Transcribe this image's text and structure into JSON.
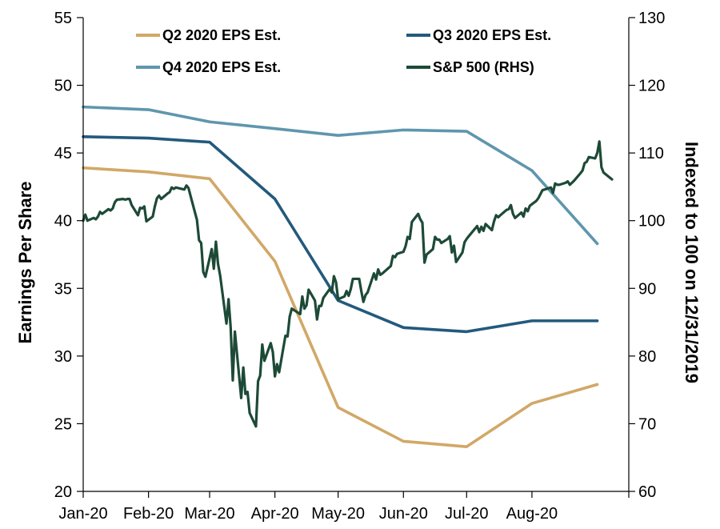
{
  "chart_data": {
    "type": "line",
    "title": "",
    "xlabel": "",
    "ylabel": "Earnings Per Share",
    "y2label": "Indexed to 100 on 12/31/2019",
    "x_ticks": [
      "Jan-20",
      "Feb-20",
      "Mar-20",
      "Apr-20",
      "May-20",
      "Jun-20",
      "Jul-20",
      "Aug-20"
    ],
    "x_range": [
      "2020-01-01",
      "2020-09-08"
    ],
    "ylim": [
      20,
      55
    ],
    "yticks": [
      "20",
      "25",
      "30",
      "35",
      "40",
      "45",
      "50",
      "55"
    ],
    "y2lim": [
      60,
      130
    ],
    "y2ticks": [
      "60",
      "70",
      "80",
      "90",
      "100",
      "110",
      "120",
      "130"
    ],
    "grid": false,
    "legend_position": "top",
    "series": [
      {
        "name": "Q2 2020 EPS Est.",
        "axis": "left",
        "color": "#d1a867",
        "points": [
          [
            "2020-01-01",
            43.9
          ],
          [
            "2020-02-01",
            43.6
          ],
          [
            "2020-03-01",
            43.1
          ],
          [
            "2020-04-01",
            37.0
          ],
          [
            "2020-05-01",
            26.2
          ],
          [
            "2020-06-01",
            23.7
          ],
          [
            "2020-07-01",
            23.3
          ],
          [
            "2020-08-01",
            26.5
          ],
          [
            "2020-09-01",
            27.9
          ]
        ]
      },
      {
        "name": "Q3 2020 EPS Est.",
        "axis": "left",
        "color": "#235a7d",
        "points": [
          [
            "2020-01-01",
            46.2
          ],
          [
            "2020-02-01",
            46.1
          ],
          [
            "2020-03-01",
            45.8
          ],
          [
            "2020-04-01",
            41.6
          ],
          [
            "2020-05-01",
            34.1
          ],
          [
            "2020-06-01",
            32.1
          ],
          [
            "2020-07-01",
            31.8
          ],
          [
            "2020-08-01",
            32.6
          ],
          [
            "2020-09-01",
            32.6
          ]
        ]
      },
      {
        "name": "Q4 2020 EPS Est.",
        "axis": "left",
        "color": "#5f96ae",
        "points": [
          [
            "2020-01-01",
            48.4
          ],
          [
            "2020-02-01",
            48.2
          ],
          [
            "2020-03-01",
            47.3
          ],
          [
            "2020-04-01",
            46.8
          ],
          [
            "2020-05-01",
            46.3
          ],
          [
            "2020-06-01",
            46.7
          ],
          [
            "2020-07-01",
            46.6
          ],
          [
            "2020-08-01",
            43.7
          ],
          [
            "2020-09-01",
            38.3
          ]
        ]
      },
      {
        "name": "S&P 500 (RHS)",
        "axis": "right",
        "color": "#1d4a37",
        "points": [
          [
            "2020-01-01",
            100.0
          ],
          [
            "2020-01-02",
            100.9
          ],
          [
            "2020-01-03",
            100.0
          ],
          [
            "2020-01-06",
            100.4
          ],
          [
            "2020-01-07",
            100.2
          ],
          [
            "2020-01-08",
            100.6
          ],
          [
            "2020-01-09",
            101.3
          ],
          [
            "2020-01-10",
            101.0
          ],
          [
            "2020-01-13",
            101.7
          ],
          [
            "2020-01-14",
            101.5
          ],
          [
            "2020-01-15",
            101.8
          ],
          [
            "2020-01-16",
            102.7
          ],
          [
            "2020-01-17",
            103.1
          ],
          [
            "2020-01-20",
            103.2
          ],
          [
            "2020-01-21",
            103.1
          ],
          [
            "2020-01-22",
            103.2
          ],
          [
            "2020-01-23",
            103.2
          ],
          [
            "2020-01-24",
            102.3
          ],
          [
            "2020-01-27",
            100.8
          ],
          [
            "2020-01-28",
            101.9
          ],
          [
            "2020-01-29",
            101.8
          ],
          [
            "2020-01-30",
            102.1
          ],
          [
            "2020-01-31",
            99.9
          ],
          [
            "2020-02-03",
            100.6
          ],
          [
            "2020-02-04",
            102.1
          ],
          [
            "2020-02-05",
            103.3
          ],
          [
            "2020-02-06",
            103.7
          ],
          [
            "2020-02-07",
            103.2
          ],
          [
            "2020-02-10",
            104.0
          ],
          [
            "2020-02-11",
            104.2
          ],
          [
            "2020-02-12",
            104.9
          ],
          [
            "2020-02-13",
            104.7
          ],
          [
            "2020-02-14",
            104.9
          ],
          [
            "2020-02-18",
            104.6
          ],
          [
            "2020-02-19",
            105.2
          ],
          [
            "2020-02-20",
            104.8
          ],
          [
            "2020-02-21",
            103.6
          ],
          [
            "2020-02-24",
            100.1
          ],
          [
            "2020-02-25",
            97.1
          ],
          [
            "2020-02-26",
            96.7
          ],
          [
            "2020-02-27",
            92.4
          ],
          [
            "2020-02-28",
            91.7
          ],
          [
            "2020-03-02",
            95.8
          ],
          [
            "2020-03-03",
            92.9
          ],
          [
            "2020-03-04",
            96.9
          ],
          [
            "2020-03-05",
            93.6
          ],
          [
            "2020-03-06",
            91.9
          ],
          [
            "2020-03-09",
            84.8
          ],
          [
            "2020-03-10",
            88.4
          ],
          [
            "2020-03-11",
            84.2
          ],
          [
            "2020-03-12",
            76.4
          ],
          [
            "2020-03-13",
            83.6
          ],
          [
            "2020-03-16",
            73.8
          ],
          [
            "2020-03-17",
            78.3
          ],
          [
            "2020-03-18",
            74.4
          ],
          [
            "2020-03-19",
            74.7
          ],
          [
            "2020-03-20",
            71.6
          ],
          [
            "2020-03-23",
            69.6
          ],
          [
            "2020-03-24",
            76.3
          ],
          [
            "2020-03-25",
            77.1
          ],
          [
            "2020-03-26",
            81.7
          ],
          [
            "2020-03-27",
            79.3
          ],
          [
            "2020-03-30",
            81.9
          ],
          [
            "2020-03-31",
            80.6
          ],
          [
            "2020-04-01",
            77.0
          ],
          [
            "2020-04-02",
            78.8
          ],
          [
            "2020-04-03",
            77.6
          ],
          [
            "2020-04-06",
            83.0
          ],
          [
            "2020-04-07",
            82.9
          ],
          [
            "2020-04-08",
            85.8
          ],
          [
            "2020-04-09",
            87.0
          ],
          [
            "2020-04-13",
            86.2
          ],
          [
            "2020-04-14",
            88.8
          ],
          [
            "2020-04-15",
            87.0
          ],
          [
            "2020-04-16",
            87.5
          ],
          [
            "2020-04-17",
            89.8
          ],
          [
            "2020-04-20",
            88.2
          ],
          [
            "2020-04-21",
            85.4
          ],
          [
            "2020-04-22",
            87.4
          ],
          [
            "2020-04-23",
            87.4
          ],
          [
            "2020-04-24",
            88.6
          ],
          [
            "2020-04-27",
            89.9
          ],
          [
            "2020-04-28",
            89.4
          ],
          [
            "2020-04-29",
            91.8
          ],
          [
            "2020-04-30",
            90.9
          ],
          [
            "2020-05-01",
            88.4
          ],
          [
            "2020-05-04",
            88.8
          ],
          [
            "2020-05-05",
            89.6
          ],
          [
            "2020-05-06",
            88.9
          ],
          [
            "2020-05-07",
            89.9
          ],
          [
            "2020-05-08",
            91.4
          ],
          [
            "2020-05-11",
            91.4
          ],
          [
            "2020-05-12",
            89.6
          ],
          [
            "2020-05-13",
            88.0
          ],
          [
            "2020-05-14",
            89.0
          ],
          [
            "2020-05-15",
            89.4
          ],
          [
            "2020-05-18",
            92.2
          ],
          [
            "2020-05-19",
            91.3
          ],
          [
            "2020-05-20",
            92.8
          ],
          [
            "2020-05-21",
            92.0
          ],
          [
            "2020-05-22",
            92.2
          ],
          [
            "2020-05-26",
            93.3
          ],
          [
            "2020-05-27",
            94.8
          ],
          [
            "2020-05-28",
            94.6
          ],
          [
            "2020-05-29",
            95.1
          ],
          [
            "2020-06-01",
            95.4
          ],
          [
            "2020-06-02",
            96.2
          ],
          [
            "2020-06-03",
            97.6
          ],
          [
            "2020-06-04",
            97.3
          ],
          [
            "2020-06-05",
            99.8
          ],
          [
            "2020-06-08",
            101.0
          ],
          [
            "2020-06-09",
            100.2
          ],
          [
            "2020-06-10",
            99.7
          ],
          [
            "2020-06-11",
            93.8
          ],
          [
            "2020-06-12",
            95.0
          ],
          [
            "2020-06-15",
            95.8
          ],
          [
            "2020-06-16",
            97.6
          ],
          [
            "2020-06-17",
            97.2
          ],
          [
            "2020-06-18",
            97.2
          ],
          [
            "2020-06-19",
            96.7
          ],
          [
            "2020-06-22",
            97.3
          ],
          [
            "2020-06-23",
            97.7
          ],
          [
            "2020-06-24",
            95.3
          ],
          [
            "2020-06-25",
            96.3
          ],
          [
            "2020-06-26",
            93.9
          ],
          [
            "2020-06-29",
            95.3
          ],
          [
            "2020-06-30",
            96.8
          ],
          [
            "2020-07-01",
            97.3
          ],
          [
            "2020-07-02",
            97.7
          ],
          [
            "2020-07-06",
            99.2
          ],
          [
            "2020-07-07",
            98.3
          ],
          [
            "2020-07-08",
            99.1
          ],
          [
            "2020-07-09",
            98.5
          ],
          [
            "2020-07-10",
            99.5
          ],
          [
            "2020-07-13",
            98.6
          ],
          [
            "2020-07-14",
            99.9
          ],
          [
            "2020-07-15",
            100.8
          ],
          [
            "2020-07-16",
            100.5
          ],
          [
            "2020-07-17",
            100.8
          ],
          [
            "2020-07-20",
            101.6
          ],
          [
            "2020-07-21",
            101.7
          ],
          [
            "2020-07-22",
            102.3
          ],
          [
            "2020-07-23",
            101.0
          ],
          [
            "2020-07-24",
            100.4
          ],
          [
            "2020-07-27",
            101.2
          ],
          [
            "2020-07-28",
            100.6
          ],
          [
            "2020-07-29",
            101.8
          ],
          [
            "2020-07-30",
            101.4
          ],
          [
            "2020-07-31",
            102.2
          ],
          [
            "2020-08-03",
            102.9
          ],
          [
            "2020-08-04",
            103.3
          ],
          [
            "2020-08-05",
            103.9
          ],
          [
            "2020-08-06",
            104.5
          ],
          [
            "2020-08-07",
            104.6
          ],
          [
            "2020-08-10",
            104.9
          ],
          [
            "2020-08-11",
            104.1
          ],
          [
            "2020-08-12",
            105.5
          ],
          [
            "2020-08-13",
            105.3
          ],
          [
            "2020-08-14",
            105.3
          ],
          [
            "2020-08-17",
            105.6
          ],
          [
            "2020-08-18",
            105.8
          ],
          [
            "2020-08-19",
            105.3
          ],
          [
            "2020-08-20",
            105.6
          ],
          [
            "2020-08-21",
            105.9
          ],
          [
            "2020-08-24",
            107.0
          ],
          [
            "2020-08-25",
            107.4
          ],
          [
            "2020-08-26",
            108.5
          ],
          [
            "2020-08-27",
            108.7
          ],
          [
            "2020-08-28",
            109.4
          ],
          [
            "2020-08-31",
            109.2
          ],
          [
            "2020-09-01",
            110.0
          ],
          [
            "2020-09-02",
            111.7
          ],
          [
            "2020-09-03",
            107.9
          ],
          [
            "2020-09-04",
            107.1
          ],
          [
            "2020-09-08",
            106.1
          ]
        ]
      }
    ]
  }
}
